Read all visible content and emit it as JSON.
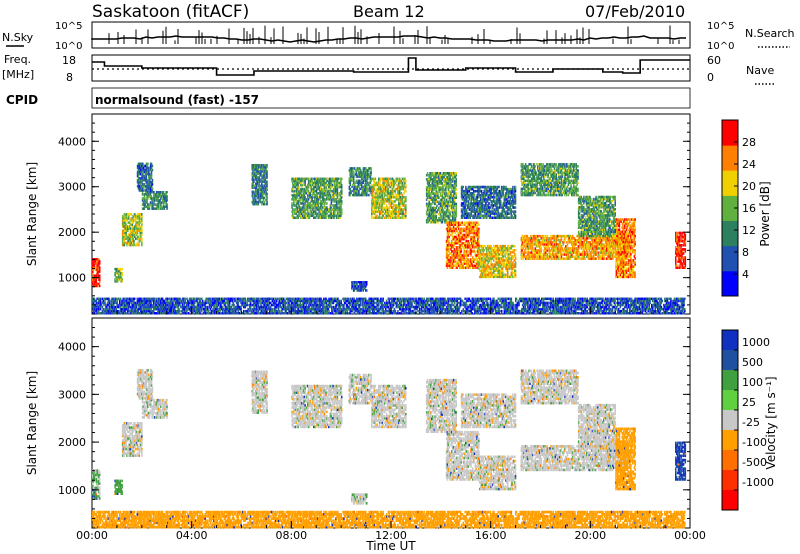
{
  "header": {
    "station": "Saskatoon (fitACF)",
    "beam": "Beam 12",
    "date": "07/Feb/2010"
  },
  "top_panels": {
    "nsky_label": "N.Sky",
    "nsearch_label": "N.Search",
    "noise_ticks": [
      "10^5",
      "10^0"
    ],
    "freq_label_1": "Freq.",
    "freq_label_2": "[MHz]",
    "freq_ticks": [
      "18",
      "8"
    ],
    "nave_label": "Nave",
    "nave_ticks": [
      "60",
      "0"
    ],
    "cpid_label": "CPID",
    "cpid_text": "normalsound (fast) -157"
  },
  "chart_data": [
    {
      "type": "heatmap",
      "title": "",
      "ylabel": "Slant Range [km]",
      "xlabel": "",
      "y_ticks": [
        1000,
        2000,
        3000,
        4000
      ],
      "ylim": [
        200,
        4600
      ],
      "xlim": [
        0,
        24
      ],
      "colorbar": {
        "label": "Power [dB]",
        "ticks": [
          "4",
          "8",
          "12",
          "16",
          "20",
          "24",
          "28"
        ],
        "colors": [
          "#0000ff",
          "#2050b0",
          "#2c8060",
          "#60b040",
          "#f0d000",
          "#ff8000",
          "#ff0000"
        ]
      }
    },
    {
      "type": "heatmap",
      "title": "",
      "ylabel": "Slant Range [km]",
      "xlabel": "Time UT",
      "y_ticks": [
        1000,
        2000,
        3000,
        4000
      ],
      "ylim": [
        200,
        4600
      ],
      "xlim": [
        0,
        24
      ],
      "x_tick_labels": [
        "00:00",
        "04:00",
        "08:00",
        "12:00",
        "16:00",
        "20:00",
        "00:00"
      ],
      "colorbar": {
        "label": "Velocity [m s⁻¹]",
        "ticks": [
          "1000",
          "500",
          "100",
          "25",
          "-25",
          "-100",
          "-500",
          "-1000"
        ],
        "colors": [
          "#1030c0",
          "#2050a0",
          "#40a040",
          "#60d040",
          "#c8c8c8",
          "#ffa000",
          "#ff7000",
          "#ff3000",
          "#ff0000"
        ]
      }
    }
  ],
  "bands": [
    {
      "t0": 0.0,
      "t1": 0.3,
      "r0": 800,
      "r1": 1400,
      "p": 26,
      "v": 30
    },
    {
      "t0": 0.9,
      "t1": 1.2,
      "r0": 900,
      "r1": 1200,
      "p": 14,
      "v": 60
    },
    {
      "t0": 1.2,
      "t1": 2.0,
      "r0": 1700,
      "r1": 2400,
      "p": 16,
      "v": 0
    },
    {
      "t0": 2.0,
      "t1": 3.0,
      "r0": 2500,
      "r1": 2900,
      "p": 10,
      "v": 0
    },
    {
      "t0": 1.8,
      "t1": 2.4,
      "r0": 2900,
      "r1": 3500,
      "p": 8,
      "v": 0
    },
    {
      "t0": 6.4,
      "t1": 7.0,
      "r0": 2600,
      "r1": 3500,
      "p": 9,
      "v": 0
    },
    {
      "t0": 8.0,
      "t1": 10.0,
      "r0": 2300,
      "r1": 3200,
      "p": 12,
      "v": 0
    },
    {
      "t0": 10.3,
      "t1": 11.2,
      "r0": 2800,
      "r1": 3400,
      "p": 10,
      "v": 0
    },
    {
      "t0": 11.2,
      "t1": 12.6,
      "r0": 2300,
      "r1": 3200,
      "p": 16,
      "v": 0
    },
    {
      "t0": 10.4,
      "t1": 11.0,
      "r0": 700,
      "r1": 900,
      "p": 6,
      "v": 0
    },
    {
      "t0": 13.4,
      "t1": 14.6,
      "r0": 2200,
      "r1": 3300,
      "p": 12,
      "v": 0
    },
    {
      "t0": 14.2,
      "t1": 15.5,
      "r0": 1200,
      "r1": 2200,
      "p": 22,
      "v": 0
    },
    {
      "t0": 15.5,
      "t1": 17.0,
      "r0": 1000,
      "r1": 1700,
      "p": 18,
      "v": 0
    },
    {
      "t0": 14.8,
      "t1": 17.0,
      "r0": 2300,
      "r1": 3000,
      "p": 8,
      "v": 0
    },
    {
      "t0": 17.2,
      "t1": 21.5,
      "r0": 1400,
      "r1": 1900,
      "p": 20,
      "v": 0
    },
    {
      "t0": 17.2,
      "t1": 19.5,
      "r0": 2800,
      "r1": 3500,
      "p": 12,
      "v": 0
    },
    {
      "t0": 19.5,
      "t1": 21.0,
      "r0": 1900,
      "r1": 2800,
      "p": 12,
      "v": 0
    },
    {
      "t0": 21.0,
      "t1": 21.8,
      "r0": 1000,
      "r1": 2300,
      "p": 22,
      "v": -60
    },
    {
      "t0": 23.4,
      "t1": 23.8,
      "r0": 1200,
      "r1": 2000,
      "p": 26,
      "v": 500
    },
    {
      "t0": 0.0,
      "t1": 23.8,
      "r0": 200,
      "r1": 550,
      "p": 6,
      "v": -60
    }
  ]
}
